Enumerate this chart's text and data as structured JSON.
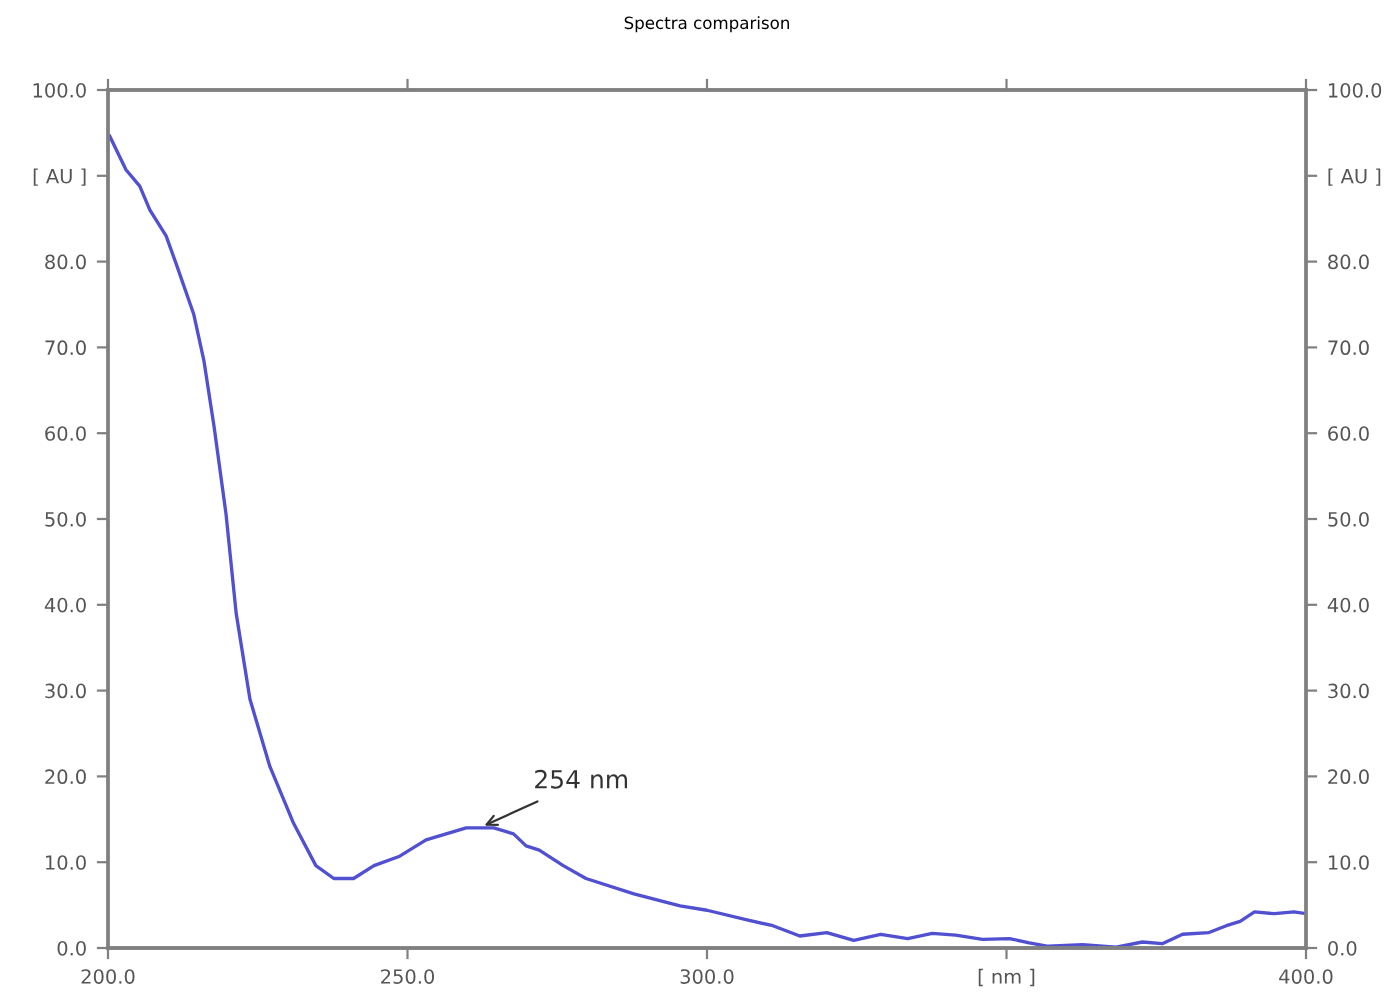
{
  "chart_data": {
    "type": "line",
    "title": "Spectra comparison",
    "x": [
      200.3,
      203,
      205.3,
      207,
      209.7,
      211.4,
      214.3,
      216,
      217.7,
      219.7,
      221.4,
      223.7,
      227,
      231,
      234.7,
      237.7,
      241,
      244.4,
      248.7,
      253.1,
      259.8,
      264.4,
      267.7,
      269.8,
      272,
      276,
      279.8,
      287.8,
      295.5,
      300,
      306.5,
      311,
      315.5,
      320,
      324.5,
      329,
      333.5,
      337.6,
      341.5,
      346,
      350.5,
      353.8,
      357,
      362.7,
      368.3,
      372.7,
      376,
      379.4,
      383.8,
      386.7,
      389,
      391.4,
      394.7,
      398,
      400
    ],
    "series": [
      {
        "color": "#5050d0",
        "values": [
          94.6,
          90.7,
          88.8,
          86,
          83,
          79.7,
          73.9,
          68.5,
          60.8,
          50.6,
          39,
          29,
          21.2,
          14.5,
          9.6,
          8.1,
          8.1,
          9.6,
          10.7,
          12.6,
          14,
          14,
          13.3,
          11.9,
          11.4,
          9.6,
          8.1,
          6.3,
          4.9,
          4.4,
          3.3,
          2.6,
          1.4,
          1.8,
          0.9,
          1.6,
          1.1,
          1.7,
          1.5,
          1.0,
          1.1,
          0.6,
          0.2,
          0.4,
          0.1,
          0.7,
          0.5,
          1.6,
          1.8,
          2.6,
          3.1,
          4.2,
          4.0,
          4.2,
          4.0
        ]
      }
    ],
    "xlim": [
      200,
      400
    ],
    "xticks": [
      {
        "value": 200,
        "label": "200.0"
      },
      {
        "value": 250,
        "label": "250.0"
      },
      {
        "value": 300,
        "label": "300.0"
      },
      {
        "value": 350,
        "label": "[ nm ]"
      },
      {
        "value": 400,
        "label": "400.0"
      }
    ],
    "ylim": [
      0,
      100
    ],
    "yticks": [
      {
        "value": 0,
        "label": "0.0"
      },
      {
        "value": 10,
        "label": "10.0"
      },
      {
        "value": 20,
        "label": "20.0"
      },
      {
        "value": 30,
        "label": "30.0"
      },
      {
        "value": 40,
        "label": "40.0"
      },
      {
        "value": 50,
        "label": "50.0"
      },
      {
        "value": 60,
        "label": "60.0"
      },
      {
        "value": 70,
        "label": "70.0"
      },
      {
        "value": 80,
        "label": "80.0"
      },
      {
        "value": 90,
        "label": "[ AU ]"
      },
      {
        "value": 100,
        "label": "100.0"
      }
    ],
    "y2lim": [
      0,
      100
    ],
    "y2ticks": [
      {
        "value": 0,
        "label": "0.0"
      },
      {
        "value": 10,
        "label": "10.0"
      },
      {
        "value": 20,
        "label": "20.0"
      },
      {
        "value": 30,
        "label": "30.0"
      },
      {
        "value": 40,
        "label": "40.0"
      },
      {
        "value": 50,
        "label": "50.0"
      },
      {
        "value": 60,
        "label": "60.0"
      },
      {
        "value": 70,
        "label": "70.0"
      },
      {
        "value": 80,
        "label": "80.0"
      },
      {
        "value": 90,
        "label": "[ AU ]"
      },
      {
        "value": 100,
        "label": "100.0"
      }
    ],
    "annotations": [
      {
        "text": "254 nm",
        "x": 262,
        "y": 14
      }
    ],
    "grid": false,
    "legend": false,
    "marker": "none",
    "line_style": "solid"
  }
}
